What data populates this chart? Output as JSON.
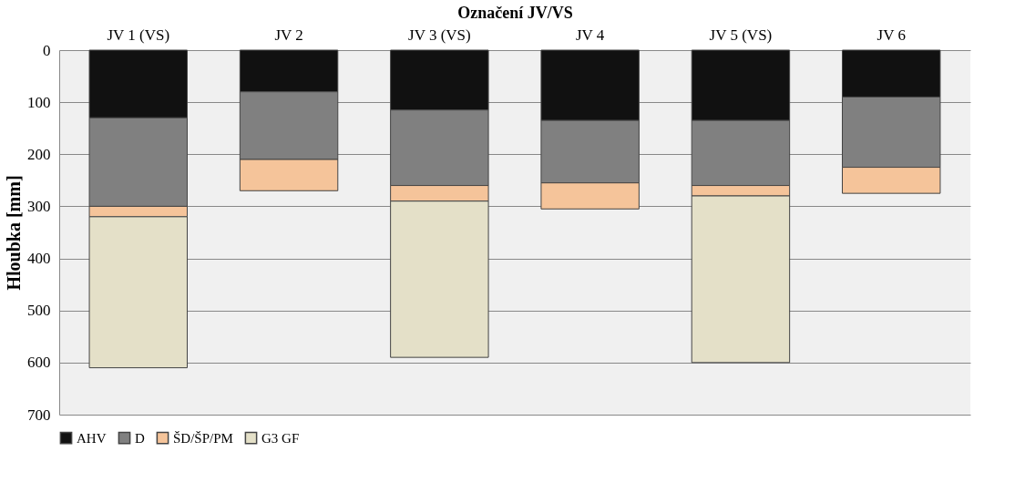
{
  "chart_data": {
    "type": "bar",
    "stacked": true,
    "xlabel": "Označení JV/VS",
    "ylabel": "Hloubka [mm]",
    "categories": [
      "JV 1 (VS)",
      "JV 2",
      "JV 3 (VS)",
      "JV 4",
      "JV 5 (VS)",
      "JV 6"
    ],
    "series": [
      {
        "name": "AHV",
        "color": "#111111",
        "values": [
          130,
          80,
          115,
          135,
          135,
          90
        ]
      },
      {
        "name": "D",
        "color": "#808080",
        "values": [
          170,
          130,
          145,
          120,
          125,
          135
        ]
      },
      {
        "name": "ŠD/ŠP/PM",
        "color": "#f5c49a",
        "values": [
          20,
          60,
          30,
          50,
          20,
          50
        ]
      },
      {
        "name": "G3 GF",
        "color": "#e4e0c8",
        "values": [
          290,
          null,
          300,
          null,
          320,
          null
        ]
      }
    ],
    "ylim": [
      700,
      0
    ],
    "yticks": [
      0,
      100,
      200,
      300,
      400,
      500,
      600,
      700
    ],
    "grid": "y",
    "legend": "bottom"
  }
}
